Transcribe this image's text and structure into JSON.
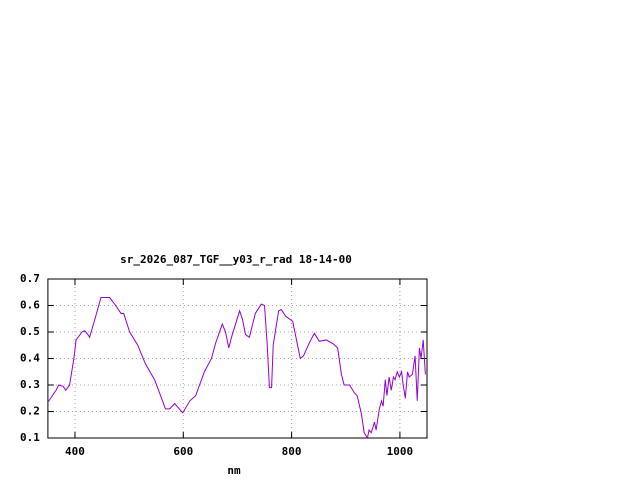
{
  "chart_data": {
    "type": "line",
    "title": "sr_2026_087_TGF__y03_r_rad 18-14-00",
    "x_label": "nm",
    "x": [
      350,
      365,
      370,
      378,
      383,
      390,
      398,
      402,
      413,
      418,
      424,
      427,
      437,
      448,
      464,
      475,
      485,
      490,
      501,
      516,
      530,
      547,
      558,
      567,
      575,
      584,
      599,
      612,
      623,
      630,
      639,
      652,
      660,
      672,
      678,
      684,
      689,
      704,
      709,
      715,
      722,
      733,
      744,
      750,
      755,
      759,
      763,
      766,
      776,
      781,
      789,
      802,
      811,
      816,
      822,
      833,
      842,
      851,
      864,
      877,
      885,
      892,
      897,
      907,
      916,
      921,
      929,
      934,
      940,
      943,
      947,
      953,
      956,
      962,
      966,
      969,
      973,
      976,
      980,
      984,
      988,
      991,
      995,
      999,
      1003,
      1006,
      1010,
      1014,
      1017,
      1023,
      1028,
      1032,
      1036,
      1039,
      1043,
      1047
    ],
    "series": [
      {
        "color": "#9400d3",
        "values": [
          0.235,
          0.28,
          0.3,
          0.295,
          0.28,
          0.3,
          0.4,
          0.47,
          0.5,
          0.505,
          0.49,
          0.48,
          0.55,
          0.63,
          0.63,
          0.6,
          0.57,
          0.57,
          0.5,
          0.45,
          0.38,
          0.32,
          0.26,
          0.21,
          0.21,
          0.23,
          0.195,
          0.24,
          0.26,
          0.3,
          0.35,
          0.4,
          0.46,
          0.53,
          0.5,
          0.44,
          0.48,
          0.58,
          0.55,
          0.49,
          0.48,
          0.57,
          0.605,
          0.6,
          0.45,
          0.29,
          0.29,
          0.45,
          0.58,
          0.585,
          0.56,
          0.54,
          0.45,
          0.4,
          0.41,
          0.46,
          0.495,
          0.465,
          0.47,
          0.455,
          0.44,
          0.34,
          0.3,
          0.3,
          0.27,
          0.26,
          0.19,
          0.12,
          0.1,
          0.13,
          0.12,
          0.16,
          0.13,
          0.21,
          0.24,
          0.22,
          0.32,
          0.26,
          0.33,
          0.28,
          0.33,
          0.32,
          0.35,
          0.33,
          0.35,
          0.3,
          0.25,
          0.35,
          0.33,
          0.34,
          0.41,
          0.24,
          0.44,
          0.4,
          0.47,
          0.34
        ]
      }
    ],
    "xlim": [
      350,
      1050
    ],
    "ylim": [
      0.1,
      0.7
    ],
    "xticks": [
      400,
      600,
      800,
      1000
    ],
    "yticks": [
      0.1,
      0.2,
      0.3,
      0.4,
      0.5,
      0.6,
      0.7
    ],
    "grid": true
  }
}
